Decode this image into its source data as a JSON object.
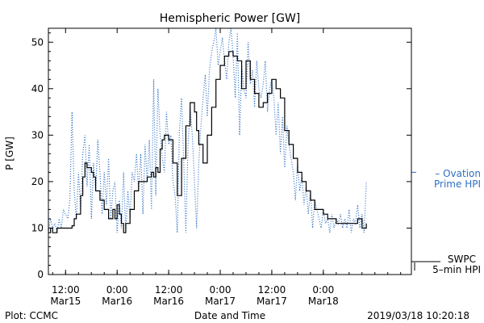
{
  "chart_data": {
    "type": "line",
    "title": "Hemispheric Power [GW]",
    "xlabel": "Date and Time",
    "ylabel": "P [GW]",
    "xlim": [
      "2019-03-15T08:00",
      "2019-03-18T20:30"
    ],
    "ylim": [
      0,
      53
    ],
    "grid": false,
    "x_ticks": [
      {
        "x": "2019-03-15T12:00",
        "time": "12:00",
        "date": "Mar15"
      },
      {
        "x": "2019-03-16T00:00",
        "time": "0:00",
        "date": "Mar16"
      },
      {
        "x": "2019-03-16T12:00",
        "time": "12:00",
        "date": "Mar16"
      },
      {
        "x": "2019-03-17T00:00",
        "time": "0:00",
        "date": "Mar17"
      },
      {
        "x": "2019-03-17T12:00",
        "time": "12:00",
        "date": "Mar17"
      },
      {
        "x": "2019-03-18T00:00",
        "time": "0:00",
        "date": "Mar18"
      }
    ],
    "y_ticks": [
      0,
      10,
      20,
      30,
      40,
      50
    ],
    "series": [
      {
        "name": "Ovation Prime HPI",
        "legend_lines": [
          "– Ovation",
          "Prime HPI"
        ],
        "style": "dotted",
        "color": "#2e6fc2",
        "x": [
          "2019-03-15T08:00",
          "2019-03-15T08:30",
          "2019-03-15T09:00",
          "2019-03-15T09:30",
          "2019-03-15T10:00",
          "2019-03-15T10:30",
          "2019-03-15T11:00",
          "2019-03-15T11:30",
          "2019-03-15T12:00",
          "2019-03-15T12:30",
          "2019-03-15T13:00",
          "2019-03-15T13:30",
          "2019-03-15T14:00",
          "2019-03-15T14:30",
          "2019-03-15T15:00",
          "2019-03-15T15:30",
          "2019-03-15T16:00",
          "2019-03-15T16:30",
          "2019-03-15T17:00",
          "2019-03-15T17:30",
          "2019-03-15T18:00",
          "2019-03-15T18:30",
          "2019-03-15T19:00",
          "2019-03-15T19:30",
          "2019-03-15T20:00",
          "2019-03-15T20:30",
          "2019-03-15T21:00",
          "2019-03-15T21:30",
          "2019-03-15T22:00",
          "2019-03-15T22:30",
          "2019-03-15T23:00",
          "2019-03-15T23:30",
          "2019-03-16T00:00",
          "2019-03-16T00:30",
          "2019-03-16T01:00",
          "2019-03-16T01:30",
          "2019-03-16T02:00",
          "2019-03-16T02:30",
          "2019-03-16T03:00",
          "2019-03-16T03:30",
          "2019-03-16T04:00",
          "2019-03-16T04:30",
          "2019-03-16T05:00",
          "2019-03-16T05:30",
          "2019-03-16T06:00",
          "2019-03-16T06:30",
          "2019-03-16T07:00",
          "2019-03-16T07:30",
          "2019-03-16T08:00",
          "2019-03-16T08:30",
          "2019-03-16T09:00",
          "2019-03-16T09:30",
          "2019-03-16T10:00",
          "2019-03-16T10:30",
          "2019-03-16T11:00",
          "2019-03-16T11:30",
          "2019-03-16T12:00",
          "2019-03-16T12:30",
          "2019-03-16T13:00",
          "2019-03-16T13:30",
          "2019-03-16T14:00",
          "2019-03-16T14:30",
          "2019-03-16T15:00",
          "2019-03-16T15:30",
          "2019-03-16T16:00",
          "2019-03-16T16:30",
          "2019-03-16T17:00",
          "2019-03-16T17:30",
          "2019-03-16T18:00",
          "2019-03-16T18:30",
          "2019-03-16T19:00",
          "2019-03-16T19:30",
          "2019-03-16T20:00",
          "2019-03-16T20:30",
          "2019-03-16T21:00",
          "2019-03-16T21:30",
          "2019-03-16T22:00",
          "2019-03-16T22:30",
          "2019-03-16T23:00",
          "2019-03-16T23:30",
          "2019-03-17T00:00",
          "2019-03-17T00:30",
          "2019-03-17T01:00",
          "2019-03-17T01:30",
          "2019-03-17T02:00",
          "2019-03-17T02:30",
          "2019-03-17T03:00",
          "2019-03-17T03:30",
          "2019-03-17T04:00",
          "2019-03-17T04:30",
          "2019-03-17T05:00",
          "2019-03-17T05:30",
          "2019-03-17T06:00",
          "2019-03-17T06:30",
          "2019-03-17T07:00",
          "2019-03-17T07:30",
          "2019-03-17T08:00",
          "2019-03-17T08:30",
          "2019-03-17T09:00",
          "2019-03-17T09:30",
          "2019-03-17T10:00",
          "2019-03-17T10:30",
          "2019-03-17T11:00",
          "2019-03-17T11:30",
          "2019-03-17T12:00",
          "2019-03-17T12:30",
          "2019-03-17T13:00",
          "2019-03-17T13:30",
          "2019-03-17T14:00",
          "2019-03-17T14:30",
          "2019-03-17T15:00",
          "2019-03-17T15:30",
          "2019-03-17T16:00",
          "2019-03-17T16:30",
          "2019-03-17T17:00",
          "2019-03-17T17:30",
          "2019-03-17T18:00",
          "2019-03-17T18:30",
          "2019-03-17T19:00",
          "2019-03-17T19:30",
          "2019-03-17T20:00",
          "2019-03-17T20:30",
          "2019-03-17T21:00",
          "2019-03-17T21:30",
          "2019-03-17T22:00",
          "2019-03-17T22:30",
          "2019-03-17T23:00",
          "2019-03-17T23:30",
          "2019-03-18T00:00",
          "2019-03-18T00:30",
          "2019-03-18T01:00",
          "2019-03-18T01:30",
          "2019-03-18T02:00",
          "2019-03-18T02:30",
          "2019-03-18T03:00",
          "2019-03-18T03:30",
          "2019-03-18T04:00",
          "2019-03-18T04:30",
          "2019-03-18T05:00",
          "2019-03-18T05:30",
          "2019-03-18T06:00",
          "2019-03-18T06:30",
          "2019-03-18T07:00",
          "2019-03-18T07:30",
          "2019-03-18T08:00",
          "2019-03-18T08:30",
          "2019-03-18T09:00",
          "2019-03-18T09:30",
          "2019-03-18T10:00"
        ],
        "y": [
          9,
          12,
          10,
          11,
          9,
          12,
          10,
          14,
          13,
          12,
          16,
          35,
          18,
          12,
          22,
          14,
          26,
          30,
          19,
          28,
          12,
          24,
          18,
          29,
          22,
          13,
          22,
          15,
          25,
          12,
          18,
          20,
          9,
          16,
          10,
          22,
          9,
          18,
          12,
          22,
          20,
          26,
          18,
          26,
          13,
          28,
          20,
          29,
          14,
          42,
          17,
          40,
          30,
          25,
          22,
          35,
          28,
          30,
          20,
          17,
          9,
          31,
          38,
          24,
          9,
          28,
          36,
          30,
          20,
          10,
          24,
          32,
          38,
          43,
          34,
          44,
          48,
          50,
          53,
          45,
          48,
          51,
          46,
          42,
          50,
          53,
          47,
          38,
          52,
          30,
          45,
          40,
          38,
          50,
          41,
          44,
          36,
          46,
          40,
          38,
          41,
          46,
          35,
          40,
          42,
          38,
          30,
          37,
          26,
          34,
          23,
          32,
          28,
          25,
          22,
          16,
          24,
          18,
          21,
          15,
          19,
          13,
          18,
          10,
          16,
          14,
          12,
          10,
          14,
          11,
          12,
          9,
          13,
          10,
          12,
          11,
          13,
          10,
          12,
          10,
          14,
          9,
          12,
          11,
          15,
          10,
          13,
          9,
          20
        ]
      },
      {
        "name": "SWPC 5-min HPI",
        "legend_lines": [
          "SWPC",
          "5–min HPI"
        ],
        "style": "solid",
        "color": "#000000",
        "x": [
          "2019-03-15T08:00",
          "2019-03-15T08:30",
          "2019-03-15T09:00",
          "2019-03-15T10:00",
          "2019-03-15T11:00",
          "2019-03-15T12:00",
          "2019-03-15T13:00",
          "2019-03-15T13:30",
          "2019-03-15T14:00",
          "2019-03-15T14:30",
          "2019-03-15T15:00",
          "2019-03-15T15:30",
          "2019-03-15T16:00",
          "2019-03-15T16:30",
          "2019-03-15T17:00",
          "2019-03-15T18:00",
          "2019-03-15T18:30",
          "2019-03-15T19:00",
          "2019-03-15T20:00",
          "2019-03-15T21:00",
          "2019-03-15T22:00",
          "2019-03-15T22:30",
          "2019-03-15T23:00",
          "2019-03-15T23:30",
          "2019-03-16T00:00",
          "2019-03-16T00:30",
          "2019-03-16T01:00",
          "2019-03-16T01:30",
          "2019-03-16T02:00",
          "2019-03-16T03:00",
          "2019-03-16T04:00",
          "2019-03-16T05:00",
          "2019-03-16T06:00",
          "2019-03-16T07:00",
          "2019-03-16T08:00",
          "2019-03-16T08:30",
          "2019-03-16T09:00",
          "2019-03-16T09:30",
          "2019-03-16T10:00",
          "2019-03-16T10:30",
          "2019-03-16T11:00",
          "2019-03-16T12:00",
          "2019-03-16T13:00",
          "2019-03-16T14:00",
          "2019-03-16T15:00",
          "2019-03-16T16:00",
          "2019-03-16T17:00",
          "2019-03-16T18:00",
          "2019-03-16T18:30",
          "2019-03-16T19:00",
          "2019-03-16T20:00",
          "2019-03-16T21:00",
          "2019-03-16T22:00",
          "2019-03-16T23:00",
          "2019-03-17T00:00",
          "2019-03-17T01:00",
          "2019-03-17T02:00",
          "2019-03-17T03:00",
          "2019-03-17T04:00",
          "2019-03-17T05:00",
          "2019-03-17T06:00",
          "2019-03-17T07:00",
          "2019-03-17T08:00",
          "2019-03-17T09:00",
          "2019-03-17T10:00",
          "2019-03-17T11:00",
          "2019-03-17T12:00",
          "2019-03-17T13:00",
          "2019-03-17T14:00",
          "2019-03-17T15:00",
          "2019-03-17T16:00",
          "2019-03-17T17:00",
          "2019-03-17T18:00",
          "2019-03-17T19:00",
          "2019-03-17T20:00",
          "2019-03-17T21:00",
          "2019-03-17T22:00",
          "2019-03-17T23:00",
          "2019-03-18T00:00",
          "2019-03-18T01:00",
          "2019-03-18T02:00",
          "2019-03-18T03:00",
          "2019-03-18T04:00",
          "2019-03-18T05:00",
          "2019-03-18T06:00",
          "2019-03-18T07:00",
          "2019-03-18T08:00",
          "2019-03-18T09:00",
          "2019-03-18T10:00"
        ],
        "y": [
          9,
          10,
          9,
          10,
          10,
          10,
          10,
          10.5,
          12,
          13,
          13,
          17,
          21,
          24,
          23,
          22,
          21,
          18,
          16,
          14,
          12,
          12,
          14,
          12,
          15,
          13,
          11,
          9,
          11,
          14,
          18,
          20,
          20,
          21,
          22,
          21,
          23,
          22,
          27,
          29,
          30,
          29,
          24,
          17,
          25,
          32,
          37,
          35,
          31,
          28,
          24,
          30,
          36,
          42,
          45,
          47,
          48,
          47,
          46,
          40,
          46,
          42,
          39,
          36,
          37,
          39,
          42,
          40,
          38,
          31,
          28,
          25,
          22,
          20,
          18,
          16,
          14,
          14,
          13,
          12,
          12,
          11,
          11,
          11,
          11,
          11,
          12,
          10,
          11
        ]
      }
    ],
    "annotations": {
      "left_footer": "Plot: CCMC",
      "timestamp": "2019/03/18 10:20:18"
    }
  }
}
